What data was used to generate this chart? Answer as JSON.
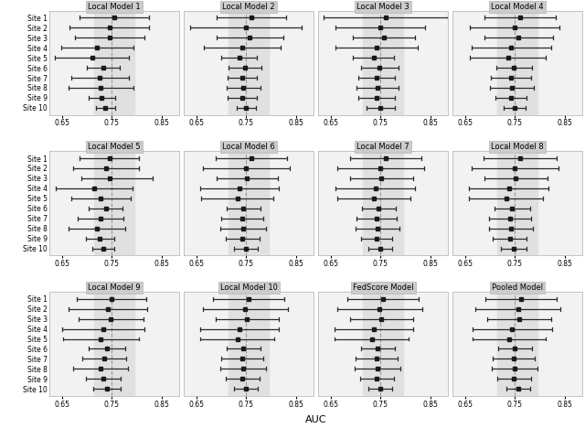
{
  "panel_titles": [
    "Local Model 1",
    "Local Model 2",
    "Local Model 3",
    "Local Model 4",
    "Local Model 5",
    "Local Model 6",
    "Local Model 7",
    "Local Model 8",
    "Local Model 9",
    "Local Model 10",
    "FedScore Model",
    "Pooled Model"
  ],
  "sites": [
    "Site 1",
    "Site 2",
    "Site 3",
    "Site 4",
    "Site 5",
    "Site 6",
    "Site 7",
    "Site 8",
    "Site 9",
    "Site 10"
  ],
  "xlim": [
    0.625,
    0.885
  ],
  "xticks": [
    0.65,
    0.75,
    0.85
  ],
  "xticklabels": [
    "0.65",
    "0.75",
    "0.85"
  ],
  "xlabel": "AUC",
  "shade_region": [
    0.715,
    0.795
  ],
  "dashed_line": 0.75,
  "data": {
    "Local Model 1": {
      "centers": [
        0.755,
        0.745,
        0.745,
        0.72,
        0.71,
        0.733,
        0.726,
        0.728,
        0.73,
        0.737
      ],
      "lo": [
        0.685,
        0.665,
        0.675,
        0.648,
        0.635,
        0.7,
        0.668,
        0.663,
        0.703,
        0.718
      ],
      "hi": [
        0.825,
        0.825,
        0.815,
        0.793,
        0.785,
        0.766,
        0.784,
        0.793,
        0.757,
        0.756
      ]
    },
    "Local Model 2": {
      "centers": [
        0.76,
        0.75,
        0.757,
        0.742,
        0.736,
        0.748,
        0.742,
        0.744,
        0.742,
        0.75
      ],
      "lo": [
        0.69,
        0.638,
        0.69,
        0.665,
        0.7,
        0.715,
        0.712,
        0.71,
        0.712,
        0.73
      ],
      "hi": [
        0.83,
        0.862,
        0.824,
        0.819,
        0.772,
        0.781,
        0.772,
        0.778,
        0.772,
        0.77
      ]
    },
    "Local Model 3": {
      "centers": [
        0.76,
        0.75,
        0.757,
        0.742,
        0.736,
        0.748,
        0.742,
        0.744,
        0.742,
        0.75
      ],
      "lo": [
        0.635,
        0.66,
        0.695,
        0.66,
        0.695,
        0.71,
        0.705,
        0.702,
        0.706,
        0.722
      ],
      "hi": [
        0.885,
        0.84,
        0.819,
        0.824,
        0.777,
        0.786,
        0.779,
        0.786,
        0.778,
        0.778
      ]
    },
    "Local Model 4": {
      "centers": [
        0.76,
        0.75,
        0.757,
        0.742,
        0.736,
        0.748,
        0.742,
        0.744,
        0.742,
        0.75
      ],
      "lo": [
        0.688,
        0.66,
        0.688,
        0.662,
        0.66,
        0.712,
        0.702,
        0.7,
        0.71,
        0.728
      ],
      "hi": [
        0.832,
        0.84,
        0.826,
        0.822,
        0.812,
        0.784,
        0.782,
        0.788,
        0.774,
        0.772
      ]
    },
    "Local Model 5": {
      "centers": [
        0.745,
        0.738,
        0.745,
        0.714,
        0.728,
        0.738,
        0.728,
        0.72,
        0.726,
        0.732
      ],
      "lo": [
        0.685,
        0.672,
        0.688,
        0.637,
        0.668,
        0.704,
        0.682,
        0.663,
        0.698,
        0.71
      ],
      "hi": [
        0.805,
        0.804,
        0.832,
        0.791,
        0.788,
        0.772,
        0.774,
        0.777,
        0.754,
        0.754
      ]
    },
    "Local Model 6": {
      "centers": [
        0.76,
        0.75,
        0.752,
        0.737,
        0.732,
        0.744,
        0.742,
        0.744,
        0.742,
        0.75
      ],
      "lo": [
        0.688,
        0.663,
        0.69,
        0.658,
        0.66,
        0.71,
        0.7,
        0.698,
        0.708,
        0.726
      ],
      "hi": [
        0.832,
        0.837,
        0.814,
        0.816,
        0.804,
        0.778,
        0.784,
        0.79,
        0.776,
        0.774
      ]
    },
    "Local Model 7": {
      "centers": [
        0.76,
        0.75,
        0.752,
        0.74,
        0.736,
        0.746,
        0.742,
        0.744,
        0.742,
        0.75
      ],
      "lo": [
        0.688,
        0.663,
        0.688,
        0.66,
        0.662,
        0.712,
        0.702,
        0.7,
        0.71,
        0.726
      ],
      "hi": [
        0.832,
        0.837,
        0.816,
        0.82,
        0.81,
        0.78,
        0.782,
        0.788,
        0.774,
        0.774
      ]
    },
    "Local Model 8": {
      "centers": [
        0.76,
        0.75,
        0.752,
        0.738,
        0.732,
        0.744,
        0.74,
        0.742,
        0.74,
        0.748
      ],
      "lo": [
        0.687,
        0.663,
        0.688,
        0.658,
        0.658,
        0.708,
        0.698,
        0.698,
        0.706,
        0.722
      ],
      "hi": [
        0.833,
        0.837,
        0.816,
        0.818,
        0.806,
        0.78,
        0.782,
        0.786,
        0.774,
        0.774
      ]
    },
    "Local Model 9": {
      "centers": [
        0.75,
        0.742,
        0.748,
        0.733,
        0.728,
        0.74,
        0.734,
        0.728,
        0.732,
        0.74
      ],
      "lo": [
        0.68,
        0.663,
        0.683,
        0.65,
        0.652,
        0.703,
        0.69,
        0.673,
        0.697,
        0.713
      ],
      "hi": [
        0.82,
        0.821,
        0.813,
        0.816,
        0.804,
        0.777,
        0.778,
        0.783,
        0.767,
        0.767
      ]
    },
    "Local Model 10": {
      "centers": [
        0.755,
        0.748,
        0.752,
        0.737,
        0.732,
        0.744,
        0.742,
        0.744,
        0.742,
        0.75
      ],
      "lo": [
        0.683,
        0.662,
        0.688,
        0.658,
        0.658,
        0.71,
        0.7,
        0.698,
        0.708,
        0.726
      ],
      "hi": [
        0.827,
        0.834,
        0.816,
        0.816,
        0.806,
        0.778,
        0.784,
        0.79,
        0.776,
        0.774
      ]
    },
    "FedScore Model": {
      "centers": [
        0.755,
        0.748,
        0.752,
        0.737,
        0.732,
        0.744,
        0.742,
        0.744,
        0.742,
        0.75
      ],
      "lo": [
        0.683,
        0.662,
        0.688,
        0.658,
        0.658,
        0.71,
        0.7,
        0.698,
        0.708,
        0.726
      ],
      "hi": [
        0.827,
        0.834,
        0.816,
        0.816,
        0.806,
        0.778,
        0.784,
        0.79,
        0.776,
        0.774
      ]
    },
    "Pooled Model": {
      "centers": [
        0.762,
        0.756,
        0.758,
        0.744,
        0.738,
        0.75,
        0.748,
        0.75,
        0.748,
        0.756
      ],
      "lo": [
        0.69,
        0.67,
        0.694,
        0.664,
        0.664,
        0.716,
        0.706,
        0.704,
        0.714,
        0.732
      ],
      "hi": [
        0.834,
        0.842,
        0.822,
        0.824,
        0.812,
        0.784,
        0.79,
        0.796,
        0.782,
        0.78
      ]
    }
  },
  "shade_color": "#e0e0e0",
  "dashed_color": "#999999",
  "point_color": "#1a1a1a",
  "line_color": "#2a2a2a",
  "title_bg_color": "#cccccc",
  "panel_bg_color": "#f2f2f2",
  "panel_border_color": "#bbbbbb"
}
